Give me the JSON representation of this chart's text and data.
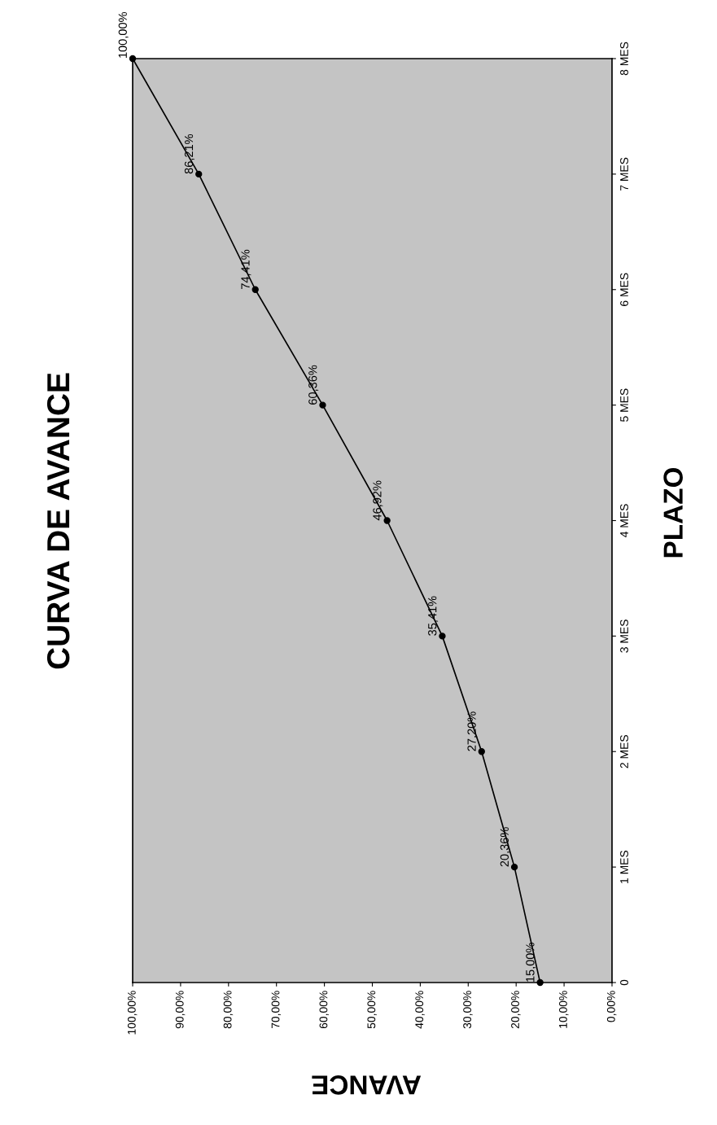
{
  "chart_data": {
    "type": "line",
    "orientation": "horizontal",
    "title": "CURVA DE AVANCE",
    "xlabel": "AVANCE",
    "ylabel": "PLAZO",
    "categories": [
      "8 MES",
      "7 MES",
      "6 MES",
      "5 MES",
      "4 MES",
      "3 MES",
      "2 MES",
      "1 MES",
      "0"
    ],
    "series": [
      {
        "color": "#000000",
        "values": [
          100.0,
          86.21,
          74.41,
          60.36,
          46.92,
          35.41,
          27.2,
          20.36,
          15.0
        ],
        "value_labels": [
          "100,00%",
          "86,21%",
          "74,41%",
          "60,36%",
          "46,92%",
          "35,41%",
          "27,20%",
          "20,36%",
          "15,00%"
        ]
      }
    ],
    "xlim": [
      100,
      0
    ],
    "xticks": [
      {
        "value": 0,
        "label": "0,00%"
      },
      {
        "value": 10,
        "label": "10,00%"
      },
      {
        "value": 20,
        "label": "20,00%"
      },
      {
        "value": 30,
        "label": "30,00%"
      },
      {
        "value": 40,
        "label": "40,00%"
      },
      {
        "value": 50,
        "label": "50,00%"
      },
      {
        "value": 60,
        "label": "60,00%"
      },
      {
        "value": 70,
        "label": "70,00%"
      },
      {
        "value": 80,
        "label": "80,00%"
      },
      {
        "value": 90,
        "label": "90,00%"
      },
      {
        "value": 100,
        "label": "100,00%"
      }
    ],
    "marker": "circle",
    "line_style": "solid",
    "grid": false
  }
}
